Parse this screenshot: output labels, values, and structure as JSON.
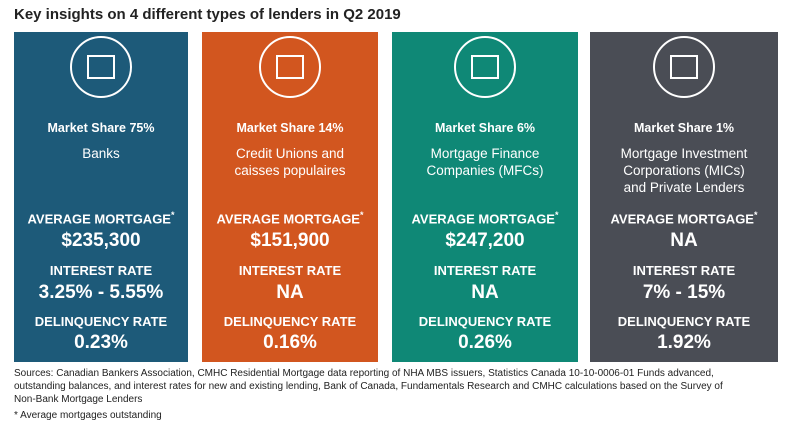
{
  "header": {
    "title": "Key insights on 4 different types of lenders in Q2 2019"
  },
  "cards": [
    {
      "market_share": "Market Share 75%",
      "name": [
        "Banks"
      ],
      "avg_label": "AVERAGE MORTGAGE",
      "avg_marker": "*",
      "avg_value": "$235,300",
      "rate_label": "INTEREST RATE",
      "rate_value": "3.25% - 5.55%",
      "delinq_label": "DELINQUENCY RATE",
      "delinq_value": "0.23%",
      "color": "#1d5a79"
    },
    {
      "market_share": "Market Share 14%",
      "name": [
        "Credit Unions and",
        "caisses populaires"
      ],
      "avg_label": "AVERAGE MORTGAGE",
      "avg_marker": "*",
      "avg_value": "$151,900",
      "rate_label": "INTEREST RATE",
      "rate_value": "NA",
      "delinq_label": "DELINQUENCY RATE",
      "delinq_value": "0.16%",
      "color": "#d2561f"
    },
    {
      "market_share": "Market Share 6%",
      "name": [
        "Mortgage Finance",
        "Companies (MFCs)"
      ],
      "avg_label": "AVERAGE MORTGAGE",
      "avg_marker": "*",
      "avg_value": "$247,200",
      "rate_label": "INTEREST RATE",
      "rate_value": "NA",
      "delinq_label": "DELINQUENCY RATE",
      "delinq_value": "0.26%",
      "color": "#0f8876"
    },
    {
      "market_share": "Market Share 1%",
      "name": [
        "Mortgage Investment",
        "Corporations (MICs)",
        "and Private Lenders"
      ],
      "avg_label": "AVERAGE MORTGAGE",
      "avg_marker": "*",
      "avg_value": "NA",
      "rate_label": "INTEREST RATE",
      "rate_value": "7% - 15%",
      "delinq_label": "DELINQUENCY RATE",
      "delinq_value": "1.92%",
      "color": "#4a4d55"
    }
  ],
  "sources": [
    "Sources: Canadian Bankers Association, CMHC Residential Mortgage data reporting of NHA MBS issuers, Statistics Canada 10-10-0006-01 Funds advanced,",
    "outstanding balances, and interest rates for new and existing lending, Bank of Canada, Fundamentals Research and CMHC calculations based on the Survey of",
    "Non-Bank Mortgage Lenders"
  ],
  "footnote": "* Average mortgages outstanding"
}
